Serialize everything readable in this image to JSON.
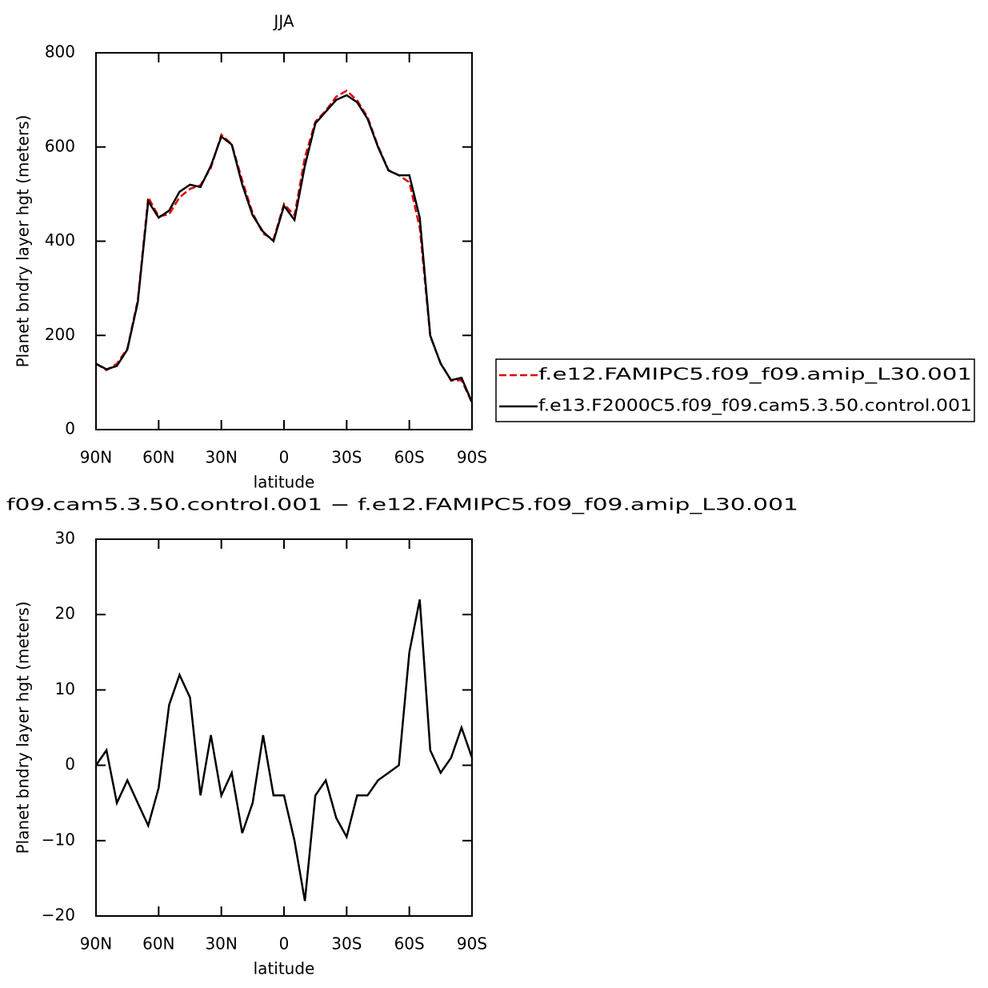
{
  "chart_data": [
    {
      "type": "line",
      "title": "JJA",
      "xlabel": "latitude",
      "ylabel": "Planet bndry layer hgt (meters)",
      "x": [
        90,
        85,
        80,
        75,
        70,
        65,
        60,
        55,
        50,
        45,
        40,
        35,
        30,
        25,
        20,
        15,
        10,
        5,
        0,
        -5,
        -10,
        -15,
        -20,
        -25,
        -30,
        -35,
        -40,
        -45,
        -50,
        -55,
        -60,
        -65,
        -70,
        -75,
        -80,
        -85,
        -90
      ],
      "series": [
        {
          "name": "f.e12.FAMIPC5.f09_f09.amip_L30.001",
          "color": "#e00000",
          "linestyle": "dashed",
          "values": [
            140,
            126,
            140,
            172,
            275,
            493,
            453,
            457,
            493,
            511,
            519,
            556,
            626,
            606,
            529,
            460,
            416,
            404,
            479,
            455,
            578,
            654,
            677,
            707,
            719.5,
            699,
            664,
            602,
            551,
            540,
            525,
            428,
            198,
            141,
            104,
            105,
            57
          ]
        },
        {
          "name": "f.e13.F2000C5.f09_f09.cam5.3.50.control.001",
          "color": "#000000",
          "linestyle": "solid",
          "values": [
            140,
            128,
            135,
            170,
            270,
            485,
            450,
            465,
            505,
            520,
            515,
            560,
            622,
            605,
            520,
            455,
            420,
            400,
            475,
            445,
            560,
            650,
            675,
            700,
            710,
            695,
            660,
            600,
            550,
            540,
            540,
            450,
            200,
            140,
            105,
            110,
            58
          ]
        }
      ],
      "xlim": [
        90,
        -90
      ],
      "xticks": [
        {
          "value": 90,
          "label": "90N"
        },
        {
          "value": 60,
          "label": "60N"
        },
        {
          "value": 30,
          "label": "30N"
        },
        0,
        {
          "value": -30,
          "label": "30S"
        },
        {
          "value": -60,
          "label": "60S"
        },
        {
          "value": -90,
          "label": "90S"
        }
      ],
      "ylim": [
        0,
        800
      ],
      "yticks": [
        0,
        200,
        400,
        600,
        800
      ],
      "legend": "right"
    },
    {
      "type": "line",
      "title": "f09.cam5.3.50.control.001 − f.e12.FAMIPC5.f09_f09.amip_L30.001",
      "xlabel": "latitude",
      "ylabel": "Planet bndry layer hgt (meters)",
      "x": [
        90,
        85,
        80,
        75,
        70,
        65,
        60,
        55,
        50,
        45,
        40,
        35,
        30,
        25,
        20,
        15,
        10,
        5,
        0,
        -5,
        -10,
        -15,
        -20,
        -25,
        -30,
        -35,
        -40,
        -45,
        -50,
        -55,
        -60,
        -65,
        -70,
        -75,
        -80,
        -85,
        -90
      ],
      "series": [
        {
          "color": "#000000",
          "linestyle": "solid",
          "values": [
            0,
            2,
            -5,
            -2,
            -5,
            -8,
            -3,
            8,
            12,
            9,
            -4,
            4,
            -4,
            -1,
            -9,
            -5,
            4,
            -4,
            -4,
            -10,
            -18,
            -4,
            -2,
            -7,
            -9.5,
            -4,
            -4,
            -2,
            -1,
            0,
            15,
            22,
            2,
            -1,
            1,
            5,
            1
          ]
        }
      ],
      "xlim": [
        90,
        -90
      ],
      "xticks": [
        {
          "value": 90,
          "label": "90N"
        },
        {
          "value": 60,
          "label": "60N"
        },
        {
          "value": 30,
          "label": "30N"
        },
        0,
        {
          "value": -30,
          "label": "30S"
        },
        {
          "value": -60,
          "label": "60S"
        },
        {
          "value": -90,
          "label": "90S"
        }
      ],
      "ylim": [
        -20,
        30
      ],
      "yticks": [
        {
          "value": -20,
          "label": "−20"
        },
        {
          "value": -10,
          "label": "−10"
        },
        0,
        10,
        20,
        30
      ]
    }
  ]
}
